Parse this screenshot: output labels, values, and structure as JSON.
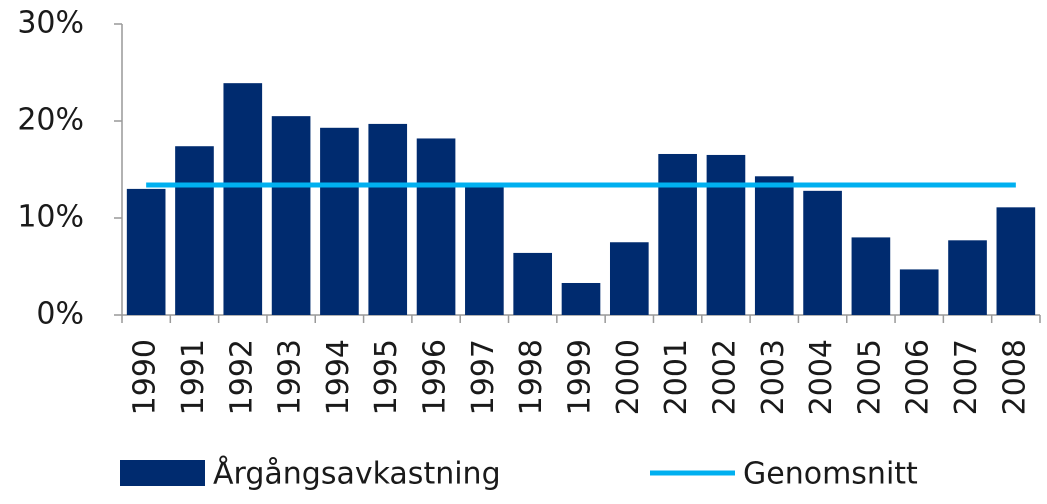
{
  "chart_data": {
    "type": "bar",
    "categories": [
      "1990",
      "1991",
      "1992",
      "1993",
      "1994",
      "1995",
      "1996",
      "1997",
      "1998",
      "1999",
      "2000",
      "2001",
      "2002",
      "2003",
      "2004",
      "2005",
      "2006",
      "2007",
      "2008"
    ],
    "series": [
      {
        "name": "Årgångsavkastning",
        "type": "bar",
        "color": "#002b6f",
        "values": [
          13.0,
          17.4,
          23.9,
          20.5,
          19.3,
          19.7,
          18.2,
          13.6,
          6.4,
          3.3,
          7.5,
          16.6,
          16.5,
          14.3,
          12.8,
          8.0,
          4.7,
          7.7,
          11.1
        ]
      },
      {
        "name": "Genomsnitt",
        "type": "line",
        "color": "#00b0f0",
        "values": [
          13.4,
          13.4,
          13.4,
          13.4,
          13.4,
          13.4,
          13.4,
          13.4,
          13.4,
          13.4,
          13.4,
          13.4,
          13.4,
          13.4,
          13.4,
          13.4,
          13.4,
          13.4,
          13.4
        ]
      }
    ],
    "ylim": [
      0,
      30
    ],
    "yticks": [
      {
        "value": 0,
        "label": "0%"
      },
      {
        "value": 10,
        "label": "10%"
      },
      {
        "value": 20,
        "label": "20%"
      },
      {
        "value": 30,
        "label": "30%"
      }
    ],
    "grid": false,
    "legend": "bottom"
  }
}
